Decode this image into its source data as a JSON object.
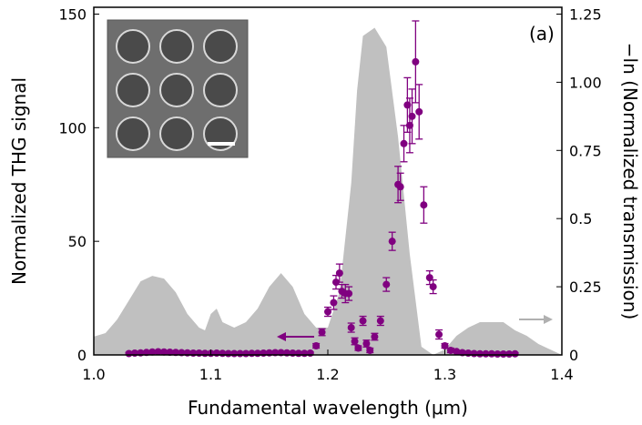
{
  "chart_data": {
    "type": "combo",
    "annotation": "(a)",
    "xlabel": "Fundamental wavelength (μm)",
    "ylabel": "Normalized THG signal",
    "y2label": "−ln (Normalized transmission)",
    "xlim": [
      1.0,
      1.4
    ],
    "xticks": [
      {
        "value": 1.0,
        "label": "1.0"
      },
      1.1,
      1.2,
      1.3,
      1.4
    ],
    "ylim": [
      0,
      153
    ],
    "yticks": [
      0,
      50,
      100,
      150
    ],
    "y2lim": [
      0,
      1.275
    ],
    "y2ticks": [
      0,
      0.25,
      0.5,
      0.75,
      {
        "value": 1.0,
        "label": "1.00"
      },
      1.25
    ],
    "series": [
      {
        "type": "area",
        "axis": "y2",
        "color": "#c0c0c0",
        "x": [
          1.0,
          1.01,
          1.02,
          1.03,
          1.04,
          1.05,
          1.06,
          1.07,
          1.08,
          1.09,
          1.095,
          1.1,
          1.105,
          1.11,
          1.12,
          1.13,
          1.14,
          1.15,
          1.16,
          1.17,
          1.18,
          1.19,
          1.2,
          1.21,
          1.22,
          1.225,
          1.23,
          1.24,
          1.25,
          1.26,
          1.27,
          1.28,
          1.29,
          1.3,
          1.31,
          1.32,
          1.33,
          1.34,
          1.35,
          1.36,
          1.37,
          1.38,
          1.39,
          1.4
        ],
        "values": [
          0.067,
          0.08,
          0.13,
          0.2,
          0.27,
          0.29,
          0.28,
          0.23,
          0.15,
          0.1,
          0.09,
          0.15,
          0.17,
          0.12,
          0.1,
          0.12,
          0.17,
          0.25,
          0.3,
          0.25,
          0.15,
          0.1,
          0.1,
          0.23,
          0.63,
          0.97,
          1.17,
          1.2,
          1.13,
          0.8,
          0.37,
          0.03,
          0.0,
          0.02,
          0.07,
          0.1,
          0.12,
          0.12,
          0.12,
          0.09,
          0.07,
          0.04,
          0.02,
          0.0
        ]
      },
      {
        "type": "scatter",
        "axis": "y",
        "color": "#800080",
        "x": [
          1.03,
          1.035,
          1.04,
          1.045,
          1.05,
          1.055,
          1.06,
          1.065,
          1.07,
          1.075,
          1.08,
          1.085,
          1.09,
          1.095,
          1.1,
          1.105,
          1.11,
          1.115,
          1.12,
          1.125,
          1.13,
          1.135,
          1.14,
          1.145,
          1.15,
          1.155,
          1.16,
          1.165,
          1.17,
          1.175,
          1.18,
          1.185,
          1.19,
          1.195,
          1.2,
          1.205,
          1.207,
          1.21,
          1.212,
          1.215,
          1.218,
          1.22,
          1.223,
          1.226,
          1.23,
          1.233,
          1.236,
          1.24,
          1.245,
          1.25,
          1.255,
          1.26,
          1.262,
          1.265,
          1.268,
          1.27,
          1.272,
          1.275,
          1.278,
          1.282,
          1.287,
          1.29,
          1.295,
          1.3,
          1.305,
          1.31,
          1.315,
          1.32,
          1.325,
          1.33,
          1.335,
          1.34,
          1.345,
          1.35,
          1.355,
          1.36
        ],
        "values": [
          0.6,
          0.8,
          0.9,
          1.1,
          1.3,
          1.4,
          1.3,
          1.2,
          1.1,
          1.0,
          0.9,
          0.8,
          0.8,
          0.7,
          0.7,
          0.8,
          0.7,
          0.6,
          0.6,
          0.6,
          0.6,
          0.7,
          0.7,
          0.8,
          0.9,
          1.0,
          1.0,
          0.9,
          0.8,
          0.7,
          0.7,
          0.8,
          4,
          10,
          19,
          23,
          32,
          36,
          28,
          27,
          27,
          12,
          6,
          3,
          15,
          5,
          2,
          8,
          15,
          31,
          50,
          75,
          74,
          93,
          110,
          101,
          105,
          129,
          107,
          66,
          34,
          30,
          9,
          4,
          2,
          1.5,
          1,
          0.8,
          0.6,
          0.5,
          0.5,
          0.5,
          0.4,
          0.4,
          0.4,
          0.5
        ],
        "errors": [
          0.5,
          0.5,
          0.5,
          0.5,
          0.5,
          0.5,
          0.5,
          0.5,
          0.5,
          0.5,
          0.5,
          0.5,
          0.5,
          0.5,
          0.5,
          0.5,
          0.5,
          0.5,
          0.5,
          0.5,
          0.5,
          0.5,
          0.5,
          0.5,
          0.5,
          0.5,
          0.5,
          0.5,
          0.5,
          0.5,
          0.5,
          0.5,
          1,
          1.5,
          2,
          3,
          3,
          4,
          3,
          4,
          3,
          2,
          1.5,
          1,
          2,
          1.5,
          1,
          1.5,
          2,
          3,
          4,
          8,
          6,
          8,
          12,
          12,
          12,
          18,
          12,
          8,
          3,
          3,
          2,
          1,
          1,
          0.5,
          0.5,
          0.5,
          0.5,
          0.5,
          0.5,
          0.5,
          0.5,
          0.5,
          0.5,
          0.5
        ]
      }
    ]
  }
}
